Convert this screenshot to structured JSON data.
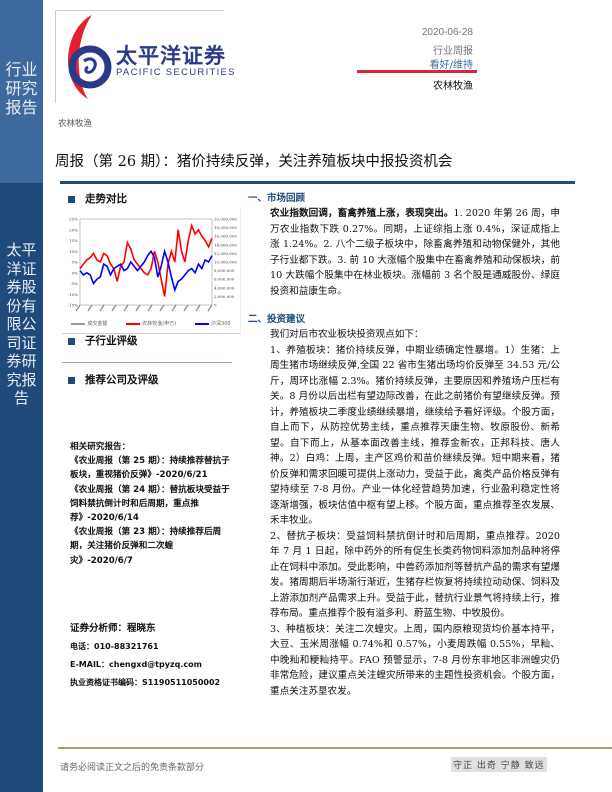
{
  "sidebar": {
    "top_label": "行业研究报告",
    "bottom_label": "太平洋证券股份有限公司证券研究报告"
  },
  "header": {
    "logo_cn": "太平洋证券",
    "logo_en": "PACIFIC SECURITIES",
    "date": "2020-06-28",
    "report_type": "行业周报",
    "rating": "看好/维持",
    "sector": "农林牧渔",
    "sector_small": "农林牧渔",
    "title": "周报（第 26 期）：猪价持续反弹，关注养殖板块中报投资机会",
    "colors": {
      "brand_blue": "#1f4a7c",
      "brand_red": "#d9263a",
      "rating_blue": "#3d6a9e"
    }
  },
  "left": {
    "trend_heading": "走势对比",
    "sub_rating_heading": "子行业评级",
    "company_heading": "推荐公司及评级",
    "related_title": "相关研究报告：",
    "related": [
      "《农业周报（第 25 期）：持续推荐替抗子板块，重视猪价反弹》-2020/6/21",
      "《农业周报（第 24 期）：替抗板块受益于饲料禁抗倒计时和后周期，重点推荐》-2020/6/14",
      "《农业周报（第 23 期）：持续推荐后周期，关注猪价反弹和二次蝗灾》-2020/6/7"
    ],
    "analyst": "证券分析师：程晓东",
    "phone": "电话：010-88321761",
    "email": "E-MAIL：chengxd@tpyzq.com",
    "license": "执业资格证书编码：S1190511050002"
  },
  "chart_data": {
    "type": "line",
    "title": "",
    "y_left": {
      "ticks": [
        "25%",
        "20%",
        "15%",
        "10%",
        "5%",
        "0%",
        "-5%",
        "-10%",
        "-15%"
      ],
      "range": [
        -15,
        25
      ]
    },
    "y_right": {
      "ticks": [
        "20,000,000",
        "18,000,000",
        "16,000,000",
        "14,000,000",
        "12,000,000",
        "10,000,000",
        "8,000,000",
        "6,000,000",
        "4,000,000",
        "2,000,000",
        "0"
      ],
      "range": [
        0,
        20000000
      ]
    },
    "series": [
      {
        "name": "成交金额",
        "color": "#999999",
        "values": []
      },
      {
        "name": "农林牧渔(申万)",
        "color": "#ff0000",
        "values": [
          2,
          4,
          6,
          7,
          9,
          6,
          5,
          9,
          8,
          4,
          2,
          -4,
          3,
          5,
          14,
          11,
          6,
          4,
          2,
          0,
          -1,
          2,
          10,
          5,
          -3,
          -11,
          4,
          10,
          5,
          20,
          10,
          5,
          15,
          22,
          18,
          20,
          17,
          15,
          12,
          16
        ]
      },
      {
        "name": "沪深300",
        "color": "#0000ff",
        "values": [
          1,
          -1,
          0,
          -1,
          -5,
          -3,
          -2,
          4,
          3,
          -1,
          2,
          3,
          4,
          1,
          2,
          5,
          3,
          1,
          3,
          5,
          8,
          10,
          7,
          -2,
          3,
          10,
          5,
          -2,
          -8,
          -4,
          -3,
          -1,
          1,
          2,
          0,
          4,
          2,
          6,
          5,
          8
        ]
      }
    ],
    "grid": false,
    "legend": "bottom"
  },
  "main": {
    "s1_heading": "一、市场回顾",
    "s1_bold": "农业指数回调，畜禽养殖上涨，表现突出。",
    "s1_text": "1. 2020 年第 26 周，申万农业指数下跌 0.27%。同期，上证综指上涨 0.4%，深证成指上涨 1.24%。2. 八个二级子板块中，除畜禽养殖和动物保健外，其他子行业都下跌。3. 前 10 大涨幅个股集中在畜禽养殖和动保板块，前 10 大跌幅个股集中在林业板块。涨幅前 3 名个股是通威股份、绿庭投资和益康生命。",
    "s2_heading": "二、投资建议",
    "s2_intro": "我们对后市农业板块投资观点如下：",
    "s2_p1": "1、养殖板块：猪价持续反弹，中期业绩确定性暴增。1）生猪：上周生猪市场继续反弹,全国 22 省市生猪出场均价反弹至 34.53 元/公斤，周环比涨幅 2.3%。猪价持续反弹，主要原因和养殖场户压栏有关。8 月份以后出栏有望边际改善，在此之前猪价有望继续反弹。预计，养殖板块二季度业绩继续暴增，继续给予看好评级。个股方面，自上而下，从防控优势主线，重点推荐天康生物、牧原股份、新希望。自下而上，从基本面改善主线，推荐金新农，正邦科技、唐人神。2）白鸡：上周，主产区鸡价和苗价继续反弹。短中期来看，猪价反弹和需求回暖可提供上涨动力，受益于此，禽类产品价格反弹有望持续至 7-8 月份。产业一体化经营趋势加速，行业盈利稳定性将逐渐增强，板块估值中枢有望上移。个股方面，重点推荐圣农发展、禾丰牧业。",
    "s2_p2": "2、替抗子板块：受益饲料禁抗倒计时和后周期，重点推荐。2020 年 7 月 1 日起，除中药外的所有促生长类药物饲料添加剂品种将停止在饲料中添加。受此影响，中兽药添加剂等替抗产品的需求有望爆发。猪周期后半场渐行渐近，生猪存栏恢复将持续拉动动保、饲料及上游添加剂产品需求上升。受益于此，替抗行业景气将持续上行，推荐布局。重点推荐个股有溢多利、蔚蓝生物、中牧股份。",
    "s2_p3": "3、种植板块：关注二次蝗灾。上周，国内原粮现货均价基本持平，大豆、玉米周涨幅 0.74%和 0.57%，小麦周跌幅 0.55%，早籼、中晚籼和粳籼持平。FAO 预警显示，7-8 月份东非地区非洲蝗灾仍非常危险，建议重点关注蝗灾所带来的主题性投资机会。个股方面，重点关注苏垦农发。"
  },
  "footer": {
    "disclaimer": "请务必阅读正文之后的免责条款部分",
    "motto": "守正 出奇 宁静 致远"
  }
}
